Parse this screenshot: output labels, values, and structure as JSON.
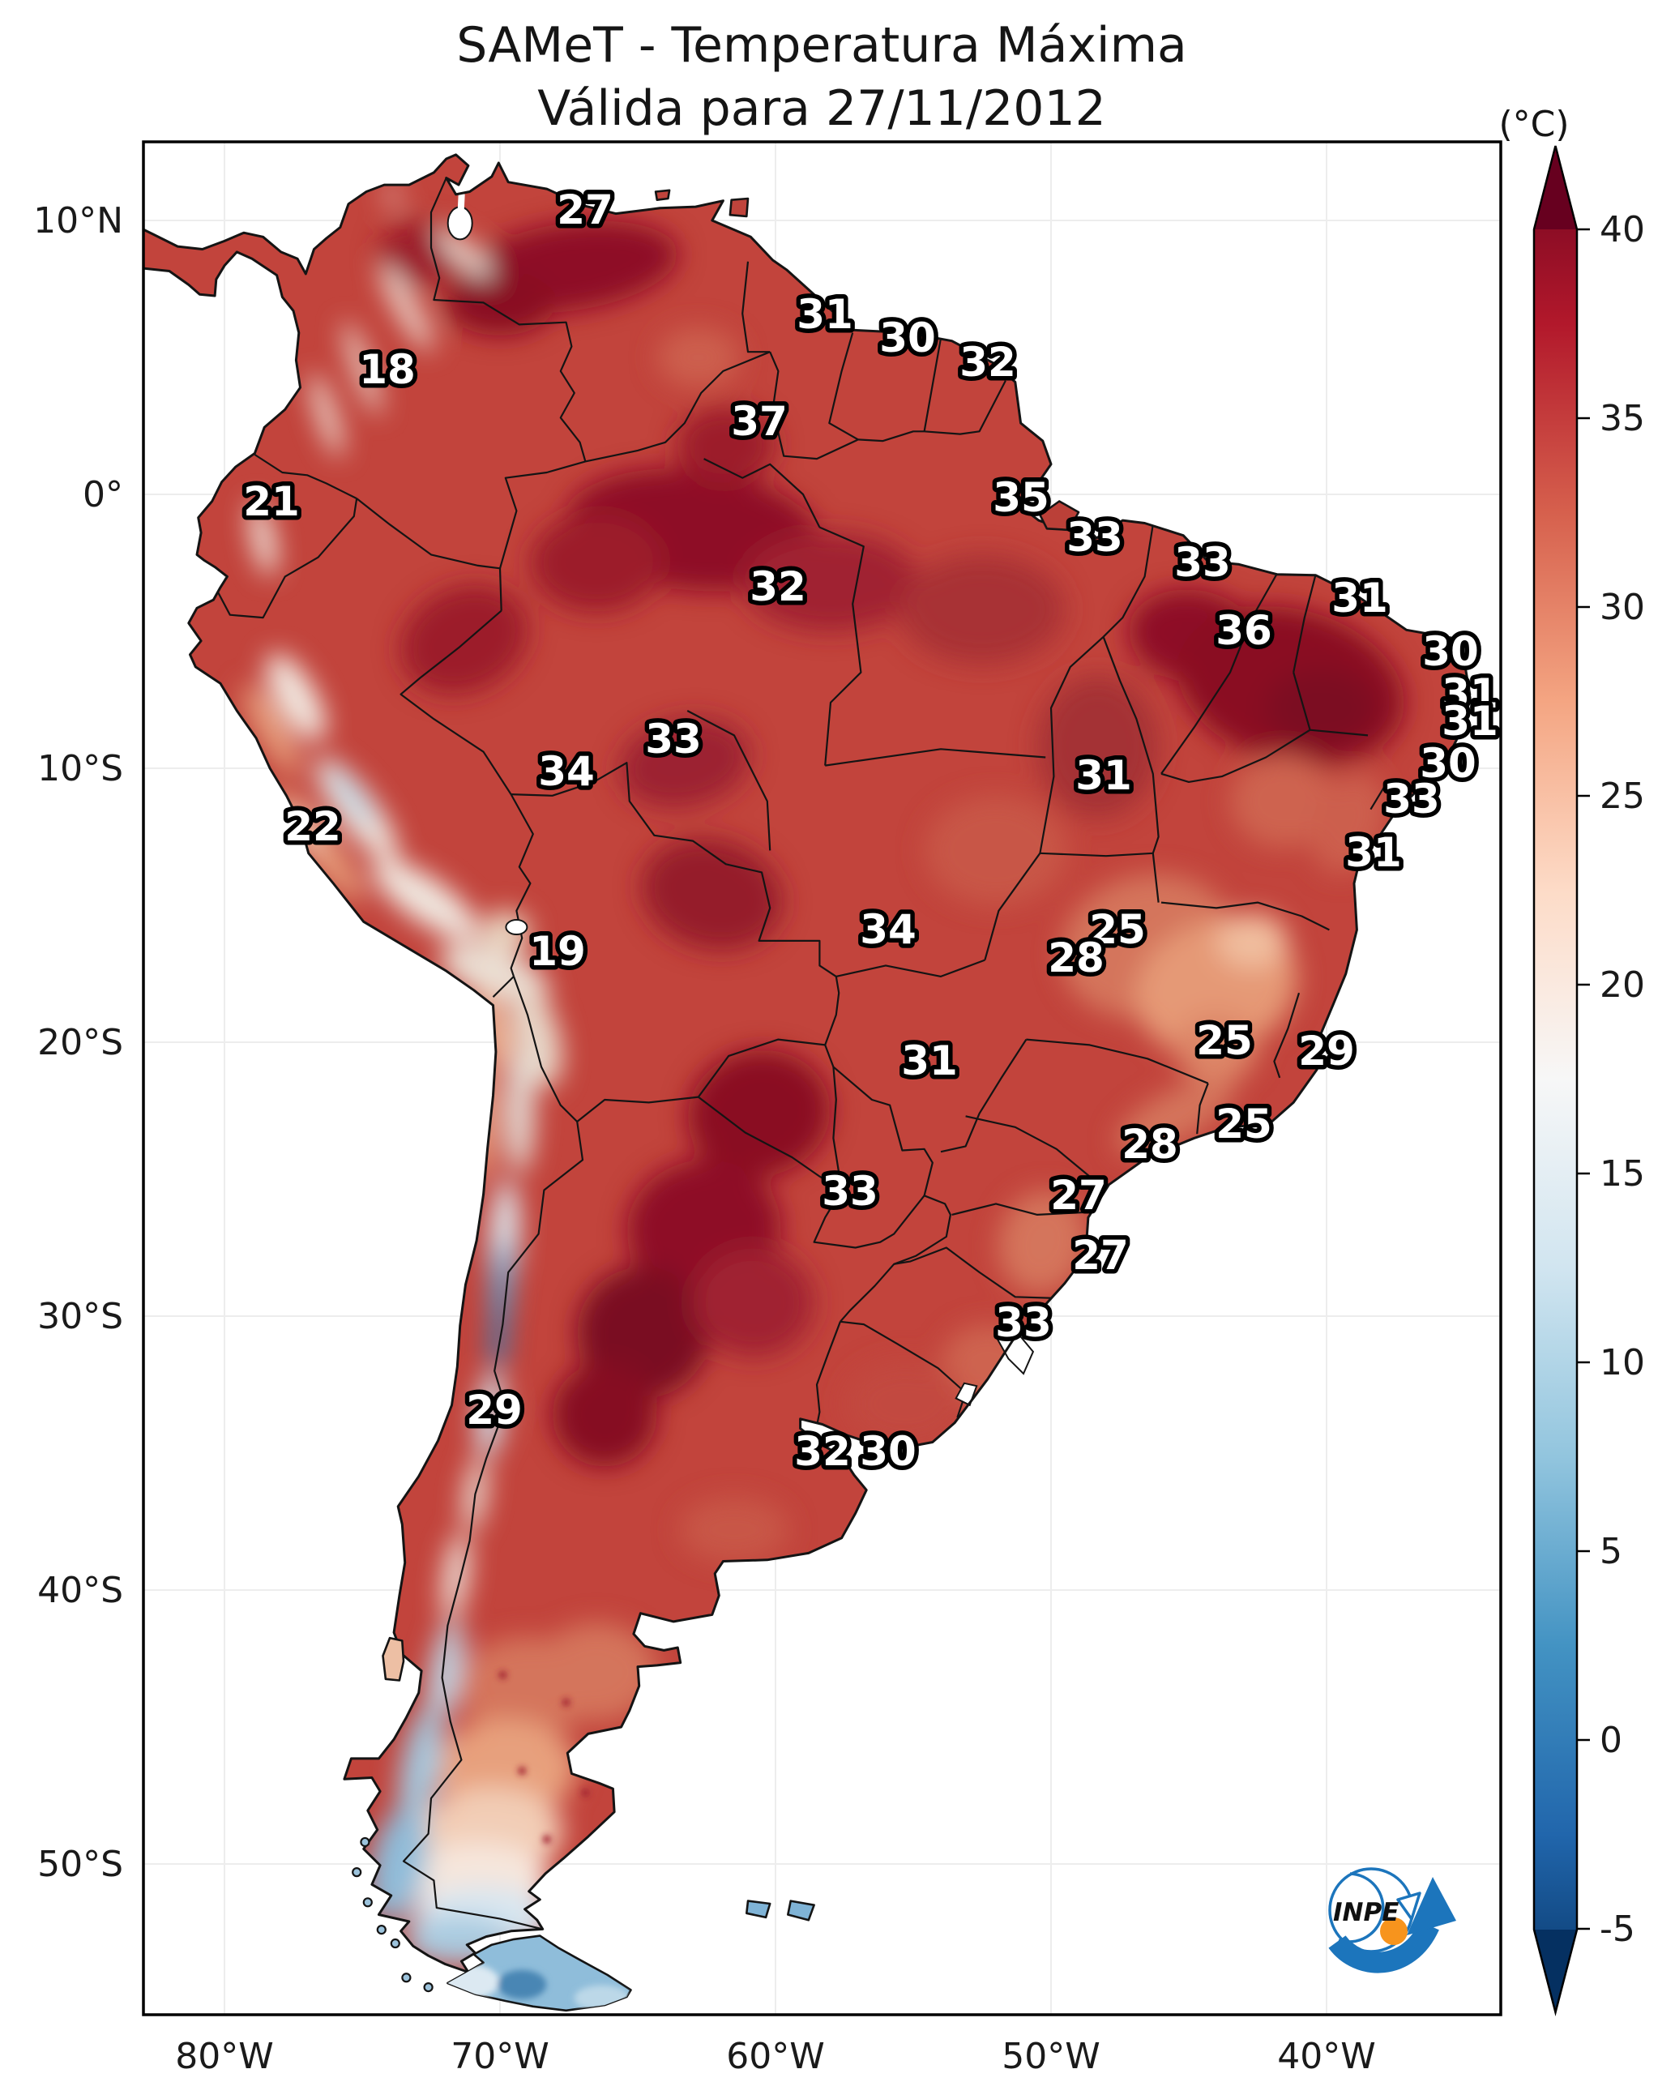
{
  "title": {
    "line1": "SAMeT - Temperatura Máxima",
    "line2": "Válida para 27/11/2012"
  },
  "colorbar": {
    "unit_label": "(°C)",
    "tick_values": [
      40,
      35,
      30,
      25,
      20,
      15,
      10,
      5,
      0,
      -5
    ],
    "over_color": "#67001f",
    "under_color": "#053061",
    "gradient": [
      {
        "value": 40,
        "color": "#8d0d25"
      },
      {
        "value": 37.5,
        "color": "#b2182b"
      },
      {
        "value": 32.5,
        "color": "#d6604d"
      },
      {
        "value": 27.5,
        "color": "#f4a582"
      },
      {
        "value": 22.5,
        "color": "#fddbc7"
      },
      {
        "value": 17.5,
        "color": "#f7f7f7"
      },
      {
        "value": 12.5,
        "color": "#d1e5f0"
      },
      {
        "value": 7.5,
        "color": "#92c5de"
      },
      {
        "value": 2.5,
        "color": "#4393c3"
      },
      {
        "value": -2.5,
        "color": "#2166ac"
      },
      {
        "value": -5,
        "color": "#134b86"
      }
    ]
  },
  "axes": {
    "lat_ticks": [
      {
        "label": "10°N",
        "deg": 10
      },
      {
        "label": "0°",
        "deg": 0
      },
      {
        "label": "10°S",
        "deg": -10
      },
      {
        "label": "20°S",
        "deg": -20
      },
      {
        "label": "30°S",
        "deg": -30
      },
      {
        "label": "40°S",
        "deg": -40
      },
      {
        "label": "50°S",
        "deg": -50
      }
    ],
    "lon_ticks": [
      {
        "label": "80°W",
        "deg": 80
      },
      {
        "label": "70°W",
        "deg": 70
      },
      {
        "label": "60°W",
        "deg": 60
      },
      {
        "label": "50°W",
        "deg": 50
      },
      {
        "label": "40°W",
        "deg": 40
      }
    ]
  },
  "stations": [
    {
      "temp": "27",
      "lon": 66.9,
      "lat": 10.4
    },
    {
      "temp": "18",
      "lon": 74.1,
      "lat": 4.6
    },
    {
      "temp": "31",
      "lon": 58.2,
      "lat": 6.6
    },
    {
      "temp": "30",
      "lon": 55.2,
      "lat": 5.75
    },
    {
      "temp": "32",
      "lon": 52.3,
      "lat": 4.85
    },
    {
      "temp": "37",
      "lon": 60.6,
      "lat": 2.7
    },
    {
      "temp": "21",
      "lon": 78.3,
      "lat": -0.25
    },
    {
      "temp": "35",
      "lon": 51.1,
      "lat": -0.1
    },
    {
      "temp": "33",
      "lon": 48.4,
      "lat": -1.55
    },
    {
      "temp": "32",
      "lon": 59.9,
      "lat": -3.35
    },
    {
      "temp": "33",
      "lon": 44.5,
      "lat": -2.45
    },
    {
      "temp": "31",
      "lon": 38.8,
      "lat": -3.75
    },
    {
      "temp": "36",
      "lon": 43.0,
      "lat": -4.95
    },
    {
      "temp": "30",
      "lon": 35.5,
      "lat": -5.7
    },
    {
      "temp": "31",
      "lon": 34.8,
      "lat": -7.25
    },
    {
      "temp": "31",
      "lon": 34.8,
      "lat": -8.25
    },
    {
      "temp": "33",
      "lon": 63.7,
      "lat": -8.9
    },
    {
      "temp": "30",
      "lon": 35.6,
      "lat": -9.8
    },
    {
      "temp": "34",
      "lon": 67.6,
      "lat": -10.1
    },
    {
      "temp": "31",
      "lon": 48.1,
      "lat": -10.25
    },
    {
      "temp": "33",
      "lon": 36.9,
      "lat": -11.1
    },
    {
      "temp": "22",
      "lon": 76.8,
      "lat": -12.1
    },
    {
      "temp": "31",
      "lon": 38.3,
      "lat": -13.05
    },
    {
      "temp": "34",
      "lon": 55.9,
      "lat": -15.85
    },
    {
      "temp": "25",
      "lon": 47.6,
      "lat": -15.85
    },
    {
      "temp": "28",
      "lon": 49.1,
      "lat": -16.9
    },
    {
      "temp": "19",
      "lon": 67.9,
      "lat": -16.65
    },
    {
      "temp": "25",
      "lon": 43.7,
      "lat": -19.9
    },
    {
      "temp": "29",
      "lon": 40.0,
      "lat": -20.3
    },
    {
      "temp": "31",
      "lon": 54.4,
      "lat": -20.65
    },
    {
      "temp": "25",
      "lon": 43.0,
      "lat": -22.95
    },
    {
      "temp": "28",
      "lon": 46.4,
      "lat": -23.7
    },
    {
      "temp": "33",
      "lon": 57.3,
      "lat": -25.4
    },
    {
      "temp": "27",
      "lon": 49.0,
      "lat": -25.55
    },
    {
      "temp": "27",
      "lon": 48.2,
      "lat": -27.75
    },
    {
      "temp": "33",
      "lon": 51.0,
      "lat": -30.2
    },
    {
      "temp": "29",
      "lon": 70.2,
      "lat": -33.4
    },
    {
      "temp": "32",
      "lon": 58.3,
      "lat": -34.9
    },
    {
      "temp": "30",
      "lon": 55.9,
      "lat": -34.9
    }
  ],
  "logo": {
    "name_label": "INPE",
    "blue": "#1c75bc",
    "orange": "#f7941d"
  }
}
